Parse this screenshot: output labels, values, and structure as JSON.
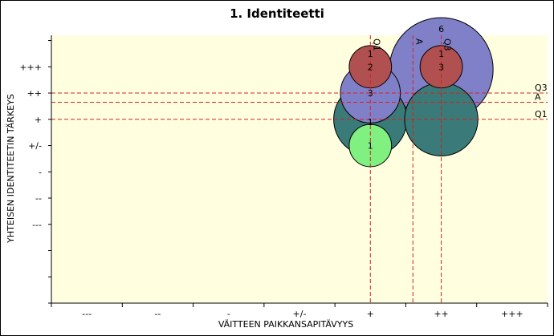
{
  "chart_data": {
    "type": "scatter",
    "title": "1. Identiteetti",
    "xlabel": "VÄITTEEN PAIKKANSAPITÄVYYS",
    "ylabel": "YHTEISEN IDENTITEETIN TÄRKEYS",
    "x_categories": [
      "---",
      "--",
      "-",
      "+/-",
      "+",
      "++",
      "+++"
    ],
    "y_categories": [
      "---",
      "--",
      "-",
      "+/-",
      "+",
      "++",
      "+++"
    ],
    "xlim": [
      0,
      7
    ],
    "ylim": [
      -2,
      8.2
    ],
    "grid": false,
    "plot_background": "#ffffe0",
    "reference_lines": {
      "vertical": [
        {
          "name": "Q1",
          "x": 4.5
        },
        {
          "name": "A",
          "x": 5.1
        },
        {
          "name": "Q3",
          "x": 5.5
        }
      ],
      "horizontal": [
        {
          "name": "Q3",
          "y": 6
        },
        {
          "name": "A",
          "y": 5.65
        },
        {
          "name": "Q1",
          "y": 5
        }
      ],
      "color": "#d62020"
    },
    "bubbles": [
      {
        "x": 5.5,
        "y": 6.9,
        "size": 6,
        "label": "6",
        "color": "#8080c8"
      },
      {
        "x": 4.5,
        "y": 5,
        "size": 3,
        "label": "",
        "color": "#3a7a78"
      },
      {
        "x": 5.5,
        "y": 5,
        "size": 3,
        "label": "",
        "color": "#3a7a78"
      },
      {
        "x": 4.5,
        "y": 6,
        "size": 2,
        "label": "3",
        "color": "#8080c8"
      },
      {
        "x": 4.5,
        "y": 7,
        "size": 1,
        "label": "2",
        "color": "#b05050"
      },
      {
        "x": 5.5,
        "y": 7,
        "size": 1,
        "label": "3",
        "color": "#b05050"
      },
      {
        "x": 4.5,
        "y": 4,
        "size": 1,
        "label": "1",
        "color": "#80f080"
      }
    ],
    "extra_labels": [
      {
        "x": 4.5,
        "y": 7.5,
        "text": "1"
      },
      {
        "x": 5.5,
        "y": 7.5,
        "text": "1"
      },
      {
        "x": 4.5,
        "y": 4.9,
        "text": "1"
      }
    ]
  }
}
